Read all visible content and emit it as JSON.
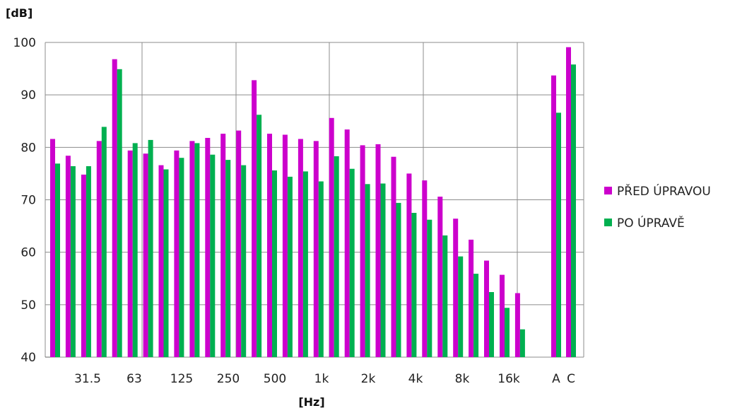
{
  "chart_data": {
    "type": "bar",
    "ylabel": "[dB]",
    "xlabel": "[Hz]",
    "ylim": [
      40,
      100
    ],
    "yticks": [
      40,
      50,
      60,
      70,
      80,
      90,
      100
    ],
    "grid": true,
    "legend_position": "right",
    "x_tick_labels": [
      "31.5",
      "63",
      "125",
      "250",
      "500",
      "1k",
      "2k",
      "4k",
      "8k",
      "16k",
      "A",
      "C"
    ],
    "series": [
      {
        "name": "PŘED ÚPRAVOU",
        "color": "#cc00cc",
        "values": [
          81.6,
          78.4,
          74.8,
          81.2,
          96.8,
          79.4,
          78.8,
          76.6,
          79.4,
          81.2,
          81.8,
          82.6,
          83.2,
          92.8,
          82.6,
          82.4,
          81.6,
          81.2,
          85.6,
          83.4,
          80.4,
          80.6,
          78.2,
          75.0,
          73.7,
          70.6,
          66.4,
          62.4,
          58.4,
          55.7,
          52.2,
          93.7,
          99.1
        ]
      },
      {
        "name": "PO ÚPRAVĚ",
        "color": "#00b050",
        "values": [
          76.9,
          76.4,
          76.4,
          83.9,
          94.9,
          80.8,
          81.4,
          75.8,
          78.0,
          80.8,
          78.6,
          77.6,
          76.6,
          86.2,
          75.6,
          74.4,
          75.4,
          73.5,
          78.3,
          75.9,
          73.0,
          73.1,
          69.4,
          67.5,
          66.2,
          63.2,
          59.2,
          55.9,
          52.4,
          49.4,
          45.3,
          86.6,
          95.8
        ]
      }
    ]
  }
}
